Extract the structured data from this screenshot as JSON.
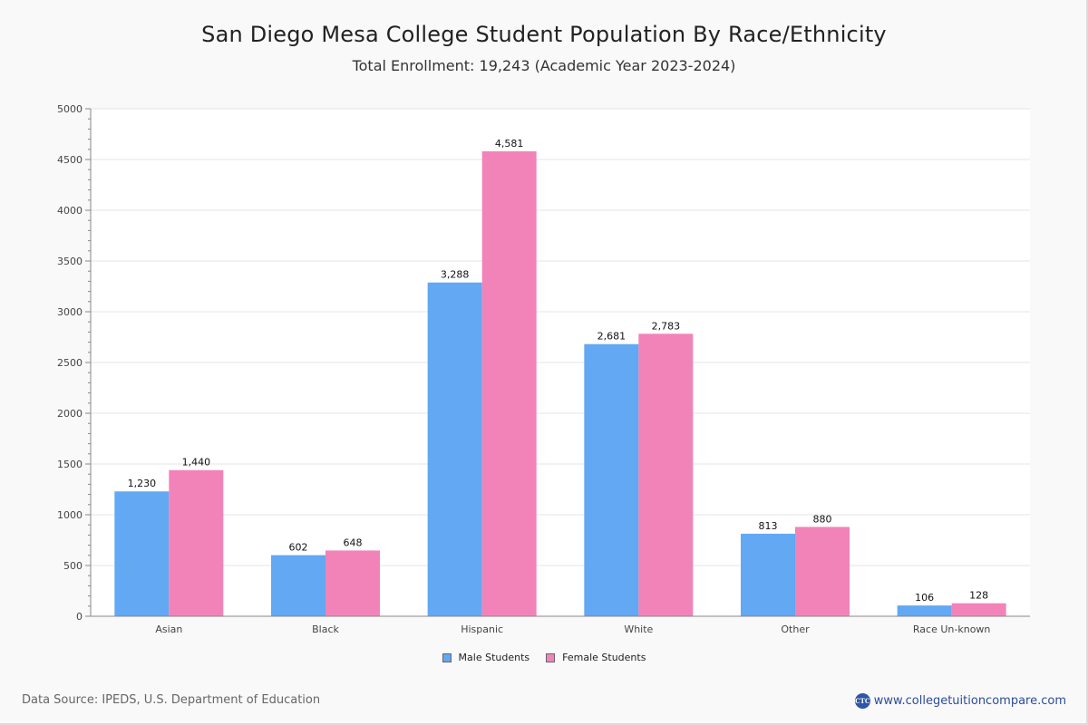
{
  "header": {
    "title": "San Diego Mesa College Student Population By Race/Ethnicity",
    "subtitle": "Total Enrollment: 19,243 (Academic Year 2023-2024)"
  },
  "footer": {
    "source": "Data Source: IPEDS, U.S. Department of Education",
    "brand_logo_text": "CTC",
    "brand_url_text": "www.collegetuitioncompare.com"
  },
  "colors": {
    "male": "#62a8f3",
    "female": "#f283b9",
    "grid": "#e4e4e4",
    "axis": "#888888"
  },
  "chart_data": {
    "type": "bar",
    "title": "San Diego Mesa College Student Population By Race/Ethnicity",
    "subtitle": "Total Enrollment: 19,243 (Academic Year 2023-2024)",
    "xlabel": "",
    "ylabel": "",
    "categories": [
      "Asian",
      "Black",
      "Hispanic",
      "White",
      "Other",
      "Race Un-known"
    ],
    "series": [
      {
        "name": "Male Students",
        "values": [
          1230,
          602,
          3288,
          2681,
          813,
          106
        ],
        "labels": [
          "1,230",
          "602",
          "3,288",
          "2,681",
          "813",
          "106"
        ]
      },
      {
        "name": "Female Students",
        "values": [
          1440,
          648,
          4581,
          2783,
          880,
          128
        ],
        "labels": [
          "1,440",
          "648",
          "4,581",
          "2,783",
          "880",
          "128"
        ]
      }
    ],
    "ylim": [
      0,
      5000
    ],
    "yticks": [
      0,
      500,
      1000,
      1500,
      2000,
      2500,
      3000,
      3500,
      4000,
      4500,
      5000
    ],
    "yticks_labels": [
      "0",
      "500",
      "1000",
      "1500",
      "2000",
      "2500",
      "3000",
      "3500",
      "4000",
      "4500",
      "5000"
    ],
    "minor_tick_step": 100,
    "grid": true,
    "legend_position": "bottom-center"
  }
}
